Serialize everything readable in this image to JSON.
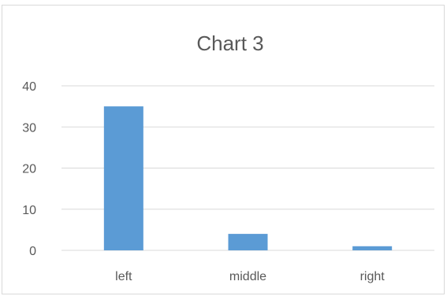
{
  "chart_data": {
    "type": "bar",
    "title": "Chart 3",
    "categories": [
      "left",
      "middle",
      "right"
    ],
    "values": [
      35,
      4,
      1
    ],
    "ylim": [
      0,
      40
    ],
    "yticks": [
      0,
      10,
      20,
      30,
      40
    ],
    "grid": true,
    "legend": "none",
    "bar_color": "#5b9bd5",
    "grid_color": "#d9d9d9",
    "text_color": "#595959"
  }
}
